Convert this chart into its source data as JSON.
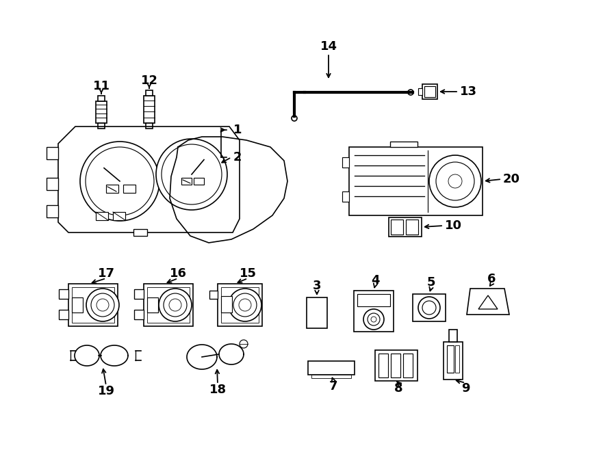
{
  "background_color": "#ffffff",
  "line_color": "#000000",
  "lw": 1.2
}
